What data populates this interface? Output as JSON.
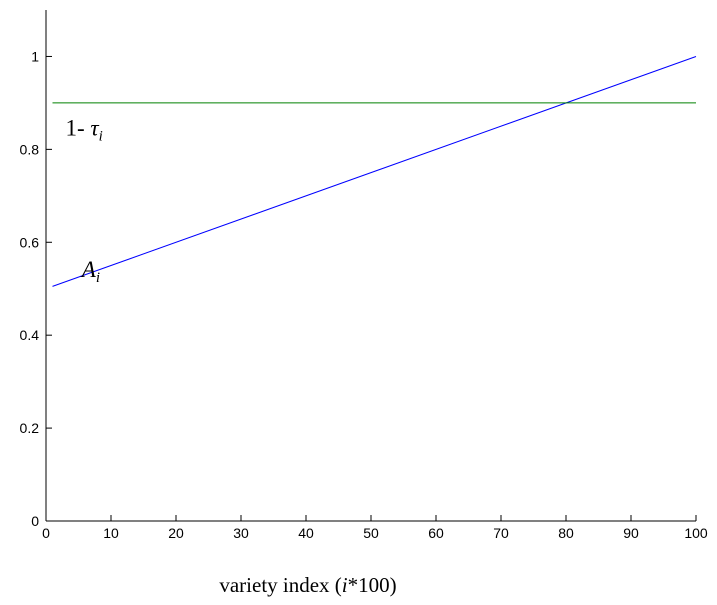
{
  "chart_data": {
    "type": "line",
    "title": "",
    "xlabel": {
      "prefix": "variety index (",
      "italic": "i",
      "suffix": "*100)"
    },
    "ylabel": "",
    "xlim": [
      0,
      100
    ],
    "ylim": [
      0,
      1.1
    ],
    "xticks": [
      0,
      10,
      20,
      30,
      40,
      50,
      60,
      70,
      80,
      90,
      100
    ],
    "yticks": [
      0,
      0.2,
      0.4,
      0.6,
      0.8,
      1
    ],
    "ytick_labels": [
      "0",
      "0.2",
      "0.4",
      "0.6",
      "0.8",
      "1"
    ],
    "grid": false,
    "series": [
      {
        "color": "#0000ff",
        "x": [
          1,
          100
        ],
        "y": [
          0.505,
          1.0
        ]
      },
      {
        "color": "#008000",
        "x": [
          1,
          100
        ],
        "y": [
          0.9,
          0.9
        ]
      }
    ],
    "annotations": [
      {
        "base": "1- ",
        "italic": "τ",
        "sub": "i",
        "x": 3,
        "y": 0.83
      },
      {
        "base": "",
        "italic": "A",
        "sub": "i",
        "x": 5.5,
        "y": 0.525
      }
    ]
  }
}
